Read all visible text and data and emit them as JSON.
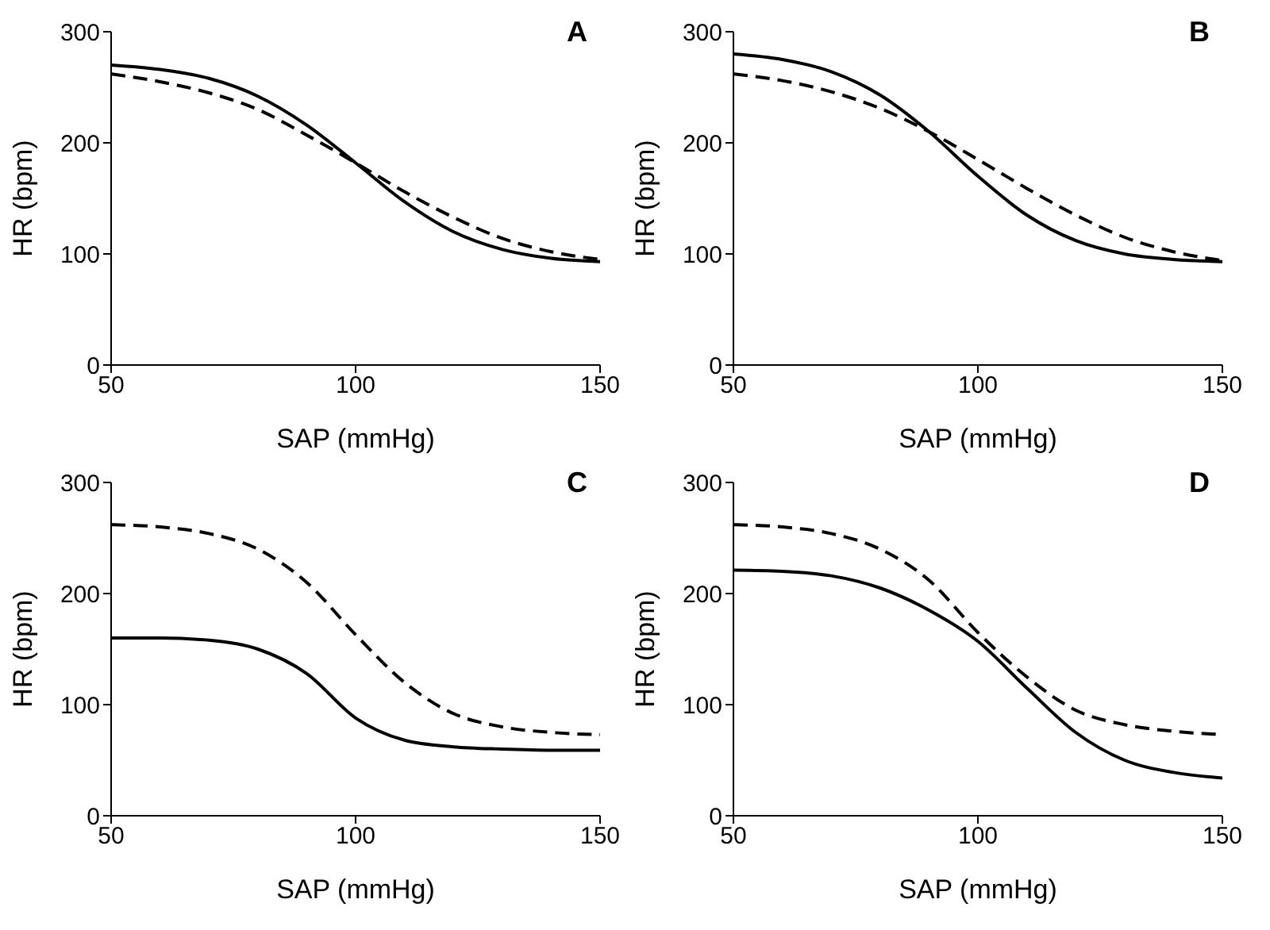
{
  "chart_data": [
    {
      "type": "line",
      "title": "A",
      "xlabel": "SAP (mmHg)",
      "ylabel": "HR (bpm)",
      "x": [
        50,
        60,
        70,
        80,
        90,
        100,
        110,
        120,
        130,
        140,
        150
      ],
      "xlim": [
        50,
        150
      ],
      "xticks": [
        50,
        100,
        150
      ],
      "ylim": [
        0,
        300
      ],
      "yticks": [
        0,
        100,
        200,
        300
      ],
      "grid": false,
      "legend": false,
      "marker": "none",
      "series": [
        {
          "color": "#000000",
          "line_style": "solid",
          "values": [
            270,
            266,
            258,
            242,
            216,
            182,
            147,
            120,
            104,
            96,
            93
          ]
        },
        {
          "color": "#000000",
          "line_style": "dashed",
          "values": [
            262,
            255,
            245,
            230,
            207,
            182,
            156,
            133,
            114,
            102,
            95
          ]
        }
      ]
    },
    {
      "type": "line",
      "title": "B",
      "xlabel": "SAP (mmHg)",
      "ylabel": "HR (bpm)",
      "x": [
        50,
        60,
        70,
        80,
        90,
        100,
        110,
        120,
        130,
        140,
        150
      ],
      "xlim": [
        50,
        150
      ],
      "xticks": [
        50,
        100,
        150
      ],
      "ylim": [
        0,
        300
      ],
      "yticks": [
        0,
        100,
        200,
        300
      ],
      "grid": false,
      "legend": false,
      "marker": "none",
      "series": [
        {
          "color": "#000000",
          "line_style": "solid",
          "values": [
            280,
            275,
            264,
            243,
            210,
            170,
            135,
            112,
            100,
            95,
            93
          ]
        },
        {
          "color": "#000000",
          "line_style": "dashed",
          "values": [
            262,
            256,
            246,
            231,
            210,
            185,
            159,
            135,
            115,
            102,
            94
          ]
        }
      ]
    },
    {
      "type": "line",
      "title": "C",
      "xlabel": "SAP (mmHg)",
      "ylabel": "HR (bpm)",
      "x": [
        50,
        60,
        70,
        80,
        90,
        100,
        110,
        120,
        130,
        140,
        150
      ],
      "xlim": [
        50,
        150
      ],
      "xticks": [
        50,
        100,
        150
      ],
      "ylim": [
        0,
        300
      ],
      "yticks": [
        0,
        100,
        200,
        300
      ],
      "grid": false,
      "legend": false,
      "marker": "none",
      "series": [
        {
          "color": "#000000",
          "line_style": "solid",
          "values": [
            160,
            160,
            158,
            150,
            128,
            88,
            68,
            62,
            60,
            59,
            59
          ]
        },
        {
          "color": "#000000",
          "line_style": "dashed",
          "values": [
            262,
            260,
            254,
            240,
            210,
            163,
            120,
            92,
            80,
            75,
            73
          ]
        }
      ]
    },
    {
      "type": "line",
      "title": "D",
      "xlabel": "SAP (mmHg)",
      "ylabel": "HR (bpm)",
      "x": [
        50,
        60,
        70,
        80,
        90,
        100,
        110,
        120,
        130,
        140,
        150
      ],
      "xlim": [
        50,
        150
      ],
      "xticks": [
        50,
        100,
        150
      ],
      "ylim": [
        0,
        300
      ],
      "yticks": [
        0,
        100,
        200,
        300
      ],
      "grid": false,
      "legend": false,
      "marker": "none",
      "series": [
        {
          "color": "#000000",
          "line_style": "solid",
          "values": [
            221,
            220,
            216,
            205,
            185,
            157,
            115,
            75,
            50,
            39,
            34
          ]
        },
        {
          "color": "#000000",
          "line_style": "dashed",
          "values": [
            262,
            260,
            254,
            240,
            212,
            165,
            125,
            95,
            82,
            76,
            73
          ]
        }
      ]
    }
  ]
}
